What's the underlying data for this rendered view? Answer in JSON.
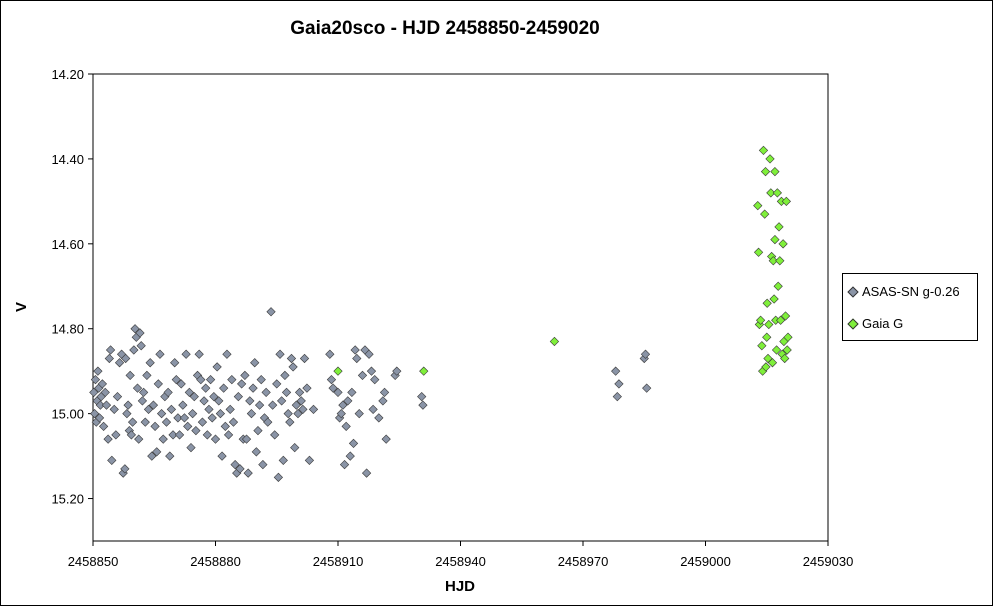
{
  "chart_data": {
    "type": "scatter",
    "title": "Gaia20sco - HJD 2458850-2459020",
    "xlabel": "HJD",
    "ylabel": "V",
    "xlim": [
      2458850,
      2459030
    ],
    "ylim": [
      15.3,
      14.2
    ],
    "y_inverted": true,
    "x_ticks": [
      "2458850",
      "2458880",
      "2458910",
      "2458940",
      "2458970",
      "2459000",
      "2459030"
    ],
    "y_ticks": [
      "14.20",
      "14.40",
      "14.60",
      "14.80",
      "15.00",
      "15.20"
    ],
    "grid": false,
    "legend_position": "right",
    "series": [
      {
        "name": "ASAS-SN g-0.26",
        "color": "#8a94a6",
        "marker": "diamond",
        "points": [
          [
            2458850.2,
            14.95
          ],
          [
            2458850.4,
            15.0
          ],
          [
            2458850.6,
            14.92
          ],
          [
            2458850.8,
            15.02
          ],
          [
            2458851.0,
            14.97
          ],
          [
            2458851.2,
            14.9
          ],
          [
            2458851.4,
            14.94
          ],
          [
            2458851.6,
            15.01
          ],
          [
            2458851.8,
            14.98
          ],
          [
            2458852.0,
            14.96
          ],
          [
            2458852.3,
            14.93
          ],
          [
            2458852.6,
            15.03
          ],
          [
            2458853.0,
            14.95
          ],
          [
            2458853.3,
            14.98
          ],
          [
            2458853.7,
            15.06
          ],
          [
            2458854.0,
            14.87
          ],
          [
            2458854.3,
            14.85
          ],
          [
            2458854.6,
            15.11
          ],
          [
            2458855.2,
            14.99
          ],
          [
            2458855.6,
            15.05
          ],
          [
            2458856.0,
            14.96
          ],
          [
            2458856.5,
            14.88
          ],
          [
            2458857.0,
            14.86
          ],
          [
            2458857.4,
            15.14
          ],
          [
            2458857.8,
            15.13
          ],
          [
            2458858.0,
            14.87
          ],
          [
            2458858.3,
            15.0
          ],
          [
            2458858.6,
            14.98
          ],
          [
            2458858.9,
            15.04
          ],
          [
            2458859.1,
            14.91
          ],
          [
            2458859.4,
            15.05
          ],
          [
            2458859.7,
            15.02
          ],
          [
            2458860.0,
            14.85
          ],
          [
            2458860.3,
            14.8
          ],
          [
            2458860.6,
            14.82
          ],
          [
            2458860.9,
            14.94
          ],
          [
            2458861.2,
            15.06
          ],
          [
            2458861.5,
            14.81
          ],
          [
            2458861.8,
            14.84
          ],
          [
            2458862.1,
            14.97
          ],
          [
            2458862.4,
            14.95
          ],
          [
            2458862.8,
            15.02
          ],
          [
            2458863.2,
            14.91
          ],
          [
            2458863.6,
            14.99
          ],
          [
            2458864.0,
            14.88
          ],
          [
            2458864.4,
            15.1
          ],
          [
            2458864.8,
            14.98
          ],
          [
            2458865.2,
            15.03
          ],
          [
            2458865.6,
            15.09
          ],
          [
            2458866.0,
            14.93
          ],
          [
            2458866.4,
            14.86
          ],
          [
            2458866.8,
            15.0
          ],
          [
            2458867.2,
            15.06
          ],
          [
            2458867.6,
            14.96
          ],
          [
            2458868.0,
            15.02
          ],
          [
            2458868.4,
            14.95
          ],
          [
            2458868.8,
            15.1
          ],
          [
            2458869.2,
            14.99
          ],
          [
            2458869.6,
            15.05
          ],
          [
            2458870.0,
            14.88
          ],
          [
            2458870.4,
            14.92
          ],
          [
            2458870.8,
            15.01
          ],
          [
            2458871.2,
            15.05
          ],
          [
            2458871.6,
            14.93
          ],
          [
            2458872.0,
            14.98
          ],
          [
            2458872.4,
            15.01
          ],
          [
            2458872.8,
            14.86
          ],
          [
            2458873.2,
            15.03
          ],
          [
            2458873.6,
            14.95
          ],
          [
            2458874.0,
            15.08
          ],
          [
            2458874.4,
            15.0
          ],
          [
            2458874.8,
            14.96
          ],
          [
            2458875.2,
            15.04
          ],
          [
            2458875.6,
            14.91
          ],
          [
            2458876.0,
            14.86
          ],
          [
            2458876.4,
            14.92
          ],
          [
            2458876.8,
            15.02
          ],
          [
            2458877.2,
            14.97
          ],
          [
            2458877.6,
            14.94
          ],
          [
            2458878.0,
            15.05
          ],
          [
            2458878.4,
            14.99
          ],
          [
            2458878.8,
            14.92
          ],
          [
            2458879.2,
            15.01
          ],
          [
            2458879.6,
            14.96
          ],
          [
            2458880.0,
            15.06
          ],
          [
            2458880.4,
            14.89
          ],
          [
            2458880.8,
            14.97
          ],
          [
            2458881.2,
            15.0
          ],
          [
            2458881.6,
            15.1
          ],
          [
            2458882.0,
            14.94
          ],
          [
            2458882.4,
            15.03
          ],
          [
            2458882.8,
            14.86
          ],
          [
            2458883.2,
            15.05
          ],
          [
            2458883.6,
            14.99
          ],
          [
            2458884.0,
            14.92
          ],
          [
            2458884.4,
            15.02
          ],
          [
            2458884.8,
            15.12
          ],
          [
            2458885.2,
            15.14
          ],
          [
            2458885.6,
            14.96
          ],
          [
            2458886.0,
            15.13
          ],
          [
            2458886.4,
            14.93
          ],
          [
            2458886.8,
            15.06
          ],
          [
            2458887.2,
            14.91
          ],
          [
            2458887.6,
            15.06
          ],
          [
            2458888.0,
            15.14
          ],
          [
            2458888.4,
            14.97
          ],
          [
            2458888.8,
            15.0
          ],
          [
            2458889.2,
            14.94
          ],
          [
            2458889.6,
            14.88
          ],
          [
            2458890.0,
            15.09
          ],
          [
            2458890.4,
            15.04
          ],
          [
            2458890.8,
            14.98
          ],
          [
            2458891.2,
            14.92
          ],
          [
            2458891.6,
            15.12
          ],
          [
            2458892.0,
            15.01
          ],
          [
            2458892.4,
            14.95
          ],
          [
            2458892.8,
            15.02
          ],
          [
            2458893.6,
            14.76
          ],
          [
            2458894.0,
            14.98
          ],
          [
            2458894.5,
            15.05
          ],
          [
            2458895.0,
            14.93
          ],
          [
            2458895.4,
            15.15
          ],
          [
            2458895.8,
            14.86
          ],
          [
            2458896.2,
            14.97
          ],
          [
            2458896.6,
            15.11
          ],
          [
            2458897.0,
            14.91
          ],
          [
            2458897.4,
            14.95
          ],
          [
            2458897.8,
            15.0
          ],
          [
            2458898.2,
            15.02
          ],
          [
            2458898.6,
            14.87
          ],
          [
            2458899.0,
            14.89
          ],
          [
            2458899.4,
            15.08
          ],
          [
            2458899.8,
            14.98
          ],
          [
            2458900.2,
            15.0
          ],
          [
            2458900.6,
            14.95
          ],
          [
            2458901.0,
            14.97
          ],
          [
            2458901.4,
            14.99
          ],
          [
            2458901.8,
            14.87
          ],
          [
            2458902.4,
            14.94
          ],
          [
            2458903.0,
            15.11
          ],
          [
            2458904.0,
            14.99
          ],
          [
            2458908.0,
            14.86
          ],
          [
            2458908.4,
            14.92
          ],
          [
            2458908.8,
            14.94
          ],
          [
            2458910.0,
            14.95
          ],
          [
            2458910.4,
            15.01
          ],
          [
            2458910.8,
            15.0
          ],
          [
            2458911.2,
            14.98
          ],
          [
            2458911.6,
            15.12
          ],
          [
            2458912.0,
            15.03
          ],
          [
            2458912.4,
            14.97
          ],
          [
            2458913.0,
            15.1
          ],
          [
            2458913.4,
            14.95
          ],
          [
            2458913.8,
            15.07
          ],
          [
            2458914.2,
            14.85
          ],
          [
            2458914.6,
            14.87
          ],
          [
            2458915.2,
            15.0
          ],
          [
            2458916.0,
            14.91
          ],
          [
            2458916.6,
            14.85
          ],
          [
            2458917.0,
            15.14
          ],
          [
            2458917.6,
            14.86
          ],
          [
            2458918.2,
            14.9
          ],
          [
            2458918.6,
            14.99
          ],
          [
            2458919.0,
            14.92
          ],
          [
            2458920.0,
            15.01
          ],
          [
            2458921.0,
            14.97
          ],
          [
            2458921.4,
            14.95
          ],
          [
            2458921.8,
            15.06
          ],
          [
            2458924.0,
            14.91
          ],
          [
            2458924.4,
            14.9
          ],
          [
            2458930.5,
            14.96
          ],
          [
            2458930.8,
            14.98
          ],
          [
            2458978.0,
            14.9
          ],
          [
            2458978.4,
            14.96
          ],
          [
            2458978.8,
            14.93
          ],
          [
            2458985.0,
            14.87
          ],
          [
            2458985.3,
            14.86
          ],
          [
            2458985.6,
            14.94
          ]
        ]
      },
      {
        "name": "Gaia G",
        "color": "#7fef3a",
        "marker": "diamond",
        "points": [
          [
            2458910.0,
            14.9
          ],
          [
            2458931.0,
            14.9
          ],
          [
            2458963.0,
            14.83
          ],
          [
            2459012.8,
            14.51
          ],
          [
            2459013.0,
            14.62
          ],
          [
            2459013.2,
            14.79
          ],
          [
            2459013.5,
            14.78
          ],
          [
            2459013.8,
            14.84
          ],
          [
            2459014.0,
            14.9
          ],
          [
            2459014.2,
            14.38
          ],
          [
            2459014.5,
            14.53
          ],
          [
            2459014.7,
            14.43
          ],
          [
            2459014.8,
            14.89
          ],
          [
            2459015.0,
            14.82
          ],
          [
            2459015.1,
            14.74
          ],
          [
            2459015.3,
            14.87
          ],
          [
            2459015.5,
            14.79
          ],
          [
            2459015.8,
            14.4
          ],
          [
            2459016.0,
            14.48
          ],
          [
            2459016.2,
            14.63
          ],
          [
            2459016.4,
            14.88
          ],
          [
            2459016.6,
            14.64
          ],
          [
            2459016.8,
            14.73
          ],
          [
            2459017.0,
            14.59
          ],
          [
            2459017.0,
            14.43
          ],
          [
            2459017.2,
            14.78
          ],
          [
            2459017.4,
            14.85
          ],
          [
            2459017.6,
            14.48
          ],
          [
            2459017.8,
            14.7
          ],
          [
            2459018.0,
            14.56
          ],
          [
            2459018.2,
            14.64
          ],
          [
            2459018.4,
            14.78
          ],
          [
            2459018.6,
            14.5
          ],
          [
            2459018.8,
            14.86
          ],
          [
            2459019.0,
            14.6
          ],
          [
            2459019.2,
            14.83
          ],
          [
            2459019.4,
            14.87
          ],
          [
            2459019.6,
            14.77
          ],
          [
            2459019.8,
            14.5
          ],
          [
            2459020.0,
            14.85
          ],
          [
            2459020.2,
            14.82
          ]
        ]
      }
    ]
  }
}
